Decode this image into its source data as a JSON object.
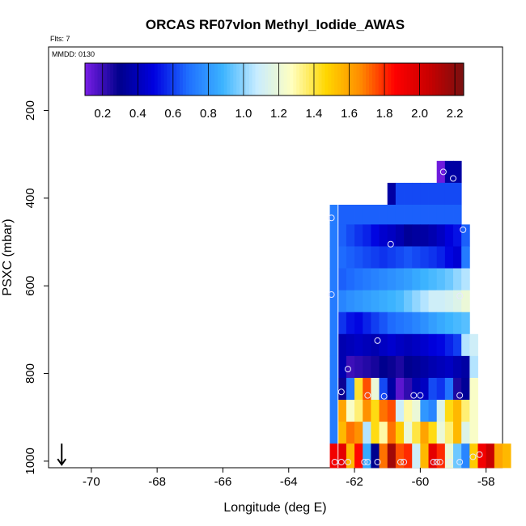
{
  "chart_data": {
    "type": "heatmap",
    "title": "ORCAS RF07vlon Methyl_Iodide_AWAS",
    "flights_label": "Flts: 7",
    "date_label": "MMDD: 0130",
    "xlabel": "Longitude (deg E)",
    "ylabel": "PSXC (mbar)",
    "xlim": [
      -71.3,
      -57.5
    ],
    "ylim_reversed": [
      1015,
      55
    ],
    "x_ticks": [
      -70,
      -68,
      -66,
      -64,
      -62,
      -60,
      -58
    ],
    "y_ticks": [
      200,
      400,
      600,
      800,
      1000
    ],
    "colorbar": {
      "range": [
        0.1,
        2.25
      ],
      "ticks": [
        0.2,
        0.4,
        0.6,
        0.8,
        1.0,
        1.2,
        1.4,
        1.6,
        1.8,
        2.0,
        2.2
      ],
      "stops": [
        "#7a1ee6",
        "#00008c",
        "#0000e0",
        "#1f6fff",
        "#3cb4ff",
        "#c8ecff",
        "#ffffc0",
        "#ffd700",
        "#ff8c00",
        "#ff0000",
        "#c80000",
        "#781010"
      ]
    },
    "bin_width_lon": 0.25,
    "rows": [
      {
        "p_top": 315,
        "p_bot": 365,
        "lon_start": -59.5,
        "values": [
          0.12,
          0.35,
          0.35
        ]
      },
      {
        "p_top": 365,
        "p_bot": 415,
        "lon_start": -61.0,
        "values": [
          0.35,
          0.62,
          0.62,
          0.62,
          0.62,
          0.62,
          0.62,
          0.62,
          0.62
        ]
      },
      {
        "p_top": 415,
        "p_bot": 460,
        "lon_start": -62.75,
        "values": [
          0.72,
          0.66,
          0.66,
          0.66,
          0.66,
          0.66,
          0.66,
          0.66,
          0.66,
          0.66,
          0.66,
          0.66,
          0.66,
          0.66,
          0.66,
          0.66
        ]
      },
      {
        "p_top": 460,
        "p_bot": 510,
        "lon_start": -62.75,
        "values": [
          0.72,
          0.66,
          0.62,
          0.58,
          0.55,
          0.5,
          0.45,
          0.42,
          0.38,
          0.32,
          0.34,
          0.35,
          0.38,
          0.42,
          0.48,
          0.52,
          0.66
        ]
      },
      {
        "p_top": 510,
        "p_bot": 560,
        "lon_start": -62.75,
        "values": [
          0.72,
          0.68,
          0.66,
          0.64,
          0.62,
          0.6,
          0.58,
          0.6,
          0.62,
          0.64,
          0.62,
          0.6,
          0.58,
          0.55,
          0.5,
          0.46,
          0.72
        ]
      },
      {
        "p_top": 560,
        "p_bot": 610,
        "lon_start": -62.75,
        "values": [
          0.72,
          0.66,
          0.68,
          0.7,
          0.72,
          0.74,
          0.76,
          0.78,
          0.8,
          0.82,
          0.85,
          0.88,
          0.9,
          0.92,
          0.95,
          1.0,
          1.05
        ]
      },
      {
        "p_top": 610,
        "p_bot": 660,
        "lon_start": -62.75,
        "values": [
          0.72,
          0.75,
          0.78,
          0.8,
          0.82,
          0.84,
          0.86,
          0.88,
          0.9,
          0.95,
          1.0,
          1.05,
          1.1,
          1.1,
          1.12,
          1.15,
          1.2
        ]
      },
      {
        "p_top": 660,
        "p_bot": 710,
        "lon_start": -62.75,
        "values": [
          0.72,
          0.58,
          0.52,
          0.5,
          0.55,
          0.6,
          0.64,
          0.68,
          0.7,
          0.72,
          0.75,
          0.78,
          0.82,
          0.85,
          0.88,
          0.9,
          0.92
        ]
      },
      {
        "p_top": 710,
        "p_bot": 760,
        "lon_start": -62.75,
        "values": [
          0.72,
          0.38,
          0.4,
          0.42,
          0.4,
          0.38,
          0.42,
          0.45,
          0.42,
          0.4,
          0.42,
          0.45,
          0.48,
          0.5,
          0.55,
          0.6,
          1.05,
          1.1
        ]
      },
      {
        "p_top": 760,
        "p_bot": 810,
        "lon_start": -62.75,
        "values": [
          0.72,
          0.38,
          0.2,
          0.22,
          0.24,
          0.26,
          0.3,
          0.28,
          0.25,
          0.3,
          0.32,
          0.35,
          0.38,
          0.4,
          0.42,
          0.38,
          0.35,
          1.05
        ]
      },
      {
        "p_top": 810,
        "p_bot": 860,
        "lon_start": -62.75,
        "values": [
          0.72,
          0.28,
          0.72,
          1.42,
          1.75,
          1.2,
          0.62,
          0.35,
          0.15,
          0.22,
          0.38,
          0.42,
          0.62,
          0.58,
          0.7,
          0.25,
          0.32,
          1.25
        ]
      },
      {
        "p_top": 860,
        "p_bot": 910,
        "lon_start": -62.75,
        "values": [
          0.72,
          1.6,
          1.25,
          1.35,
          1.65,
          1.45,
          1.7,
          1.75,
          1.1,
          1.3,
          1.2,
          0.8,
          0.75,
          1.15,
          1.45,
          1.55,
          1.35,
          1.25
        ]
      },
      {
        "p_top": 910,
        "p_bot": 960,
        "lon_start": -62.75,
        "values": [
          0.72,
          1.55,
          1.7,
          1.65,
          1.05,
          1.45,
          1.3,
          1.7,
          1.5,
          1.2,
          1.4,
          1.6,
          1.45,
          1.2,
          1.35,
          1.55,
          1.15,
          1.25
        ]
      },
      {
        "p_top": 960,
        "p_bot": 1015,
        "lon_start": -62.75,
        "values": [
          1.9,
          1.95,
          1.55,
          1.85,
          0.85,
          0.3,
          1.7,
          2.15,
          1.75,
          1.8,
          1.1,
          1.55,
          1.95,
          1.8,
          1.2,
          0.95,
          0.75,
          1.5,
          1.9,
          2.05,
          1.6,
          1.55
        ]
      }
    ],
    "vertical_line_lon": -62.5,
    "markers": [
      {
        "lon": -59.3,
        "p": 340
      },
      {
        "lon": -59.0,
        "p": 355
      },
      {
        "lon": -62.7,
        "p": 445
      },
      {
        "lon": -60.9,
        "p": 505
      },
      {
        "lon": -58.7,
        "p": 472
      },
      {
        "lon": -62.7,
        "p": 620
      },
      {
        "lon": -58.8,
        "p": 623
      },
      {
        "lon": -61.3,
        "p": 725
      },
      {
        "lon": -62.2,
        "p": 790
      },
      {
        "lon": -62.4,
        "p": 842
      },
      {
        "lon": -61.6,
        "p": 850
      },
      {
        "lon": -61.1,
        "p": 852
      },
      {
        "lon": -60.2,
        "p": 850
      },
      {
        "lon": -60.0,
        "p": 850
      },
      {
        "lon": -58.8,
        "p": 850
      },
      {
        "lon": -62.6,
        "p": 1002
      },
      {
        "lon": -62.4,
        "p": 1002
      },
      {
        "lon": -62.2,
        "p": 1002
      },
      {
        "lon": -61.7,
        "p": 1002
      },
      {
        "lon": -61.6,
        "p": 1002
      },
      {
        "lon": -61.3,
        "p": 1002
      },
      {
        "lon": -60.6,
        "p": 1002
      },
      {
        "lon": -60.5,
        "p": 1002
      },
      {
        "lon": -59.6,
        "p": 1002
      },
      {
        "lon": -59.5,
        "p": 1002
      },
      {
        "lon": -59.4,
        "p": 1002
      },
      {
        "lon": -59.1,
        "p": 1002
      },
      {
        "lon": -58.8,
        "p": 1002
      },
      {
        "lon": -58.4,
        "p": 990
      },
      {
        "lon": -58.2,
        "p": 985
      }
    ],
    "arrow": {
      "lon": -70.9,
      "p_from": 960,
      "p_to": 1008
    }
  }
}
